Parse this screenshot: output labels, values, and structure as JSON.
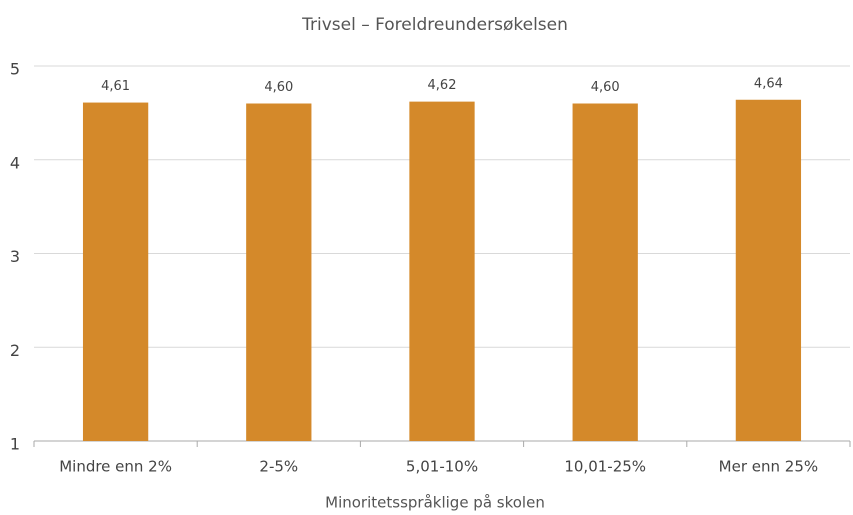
{
  "chart_data": {
    "type": "bar",
    "title": "Trivsel – Foreldreundersøkelsen",
    "x_label": "Minoritetsspråklige på skolen",
    "categories": [
      "Mindre enn 2%",
      "2-5%",
      "5,01-10%",
      "10,01-25%",
      "Mer enn 25%"
    ],
    "values": [
      4.61,
      4.6,
      4.62,
      4.6,
      4.64
    ],
    "value_labels": [
      "4,61",
      "4,60",
      "4,62",
      "4,60",
      "4,64"
    ],
    "color": "#d4892a",
    "ylim": [
      1,
      5
    ],
    "yticks": [
      1,
      2,
      3,
      4,
      5
    ],
    "grid": true
  }
}
